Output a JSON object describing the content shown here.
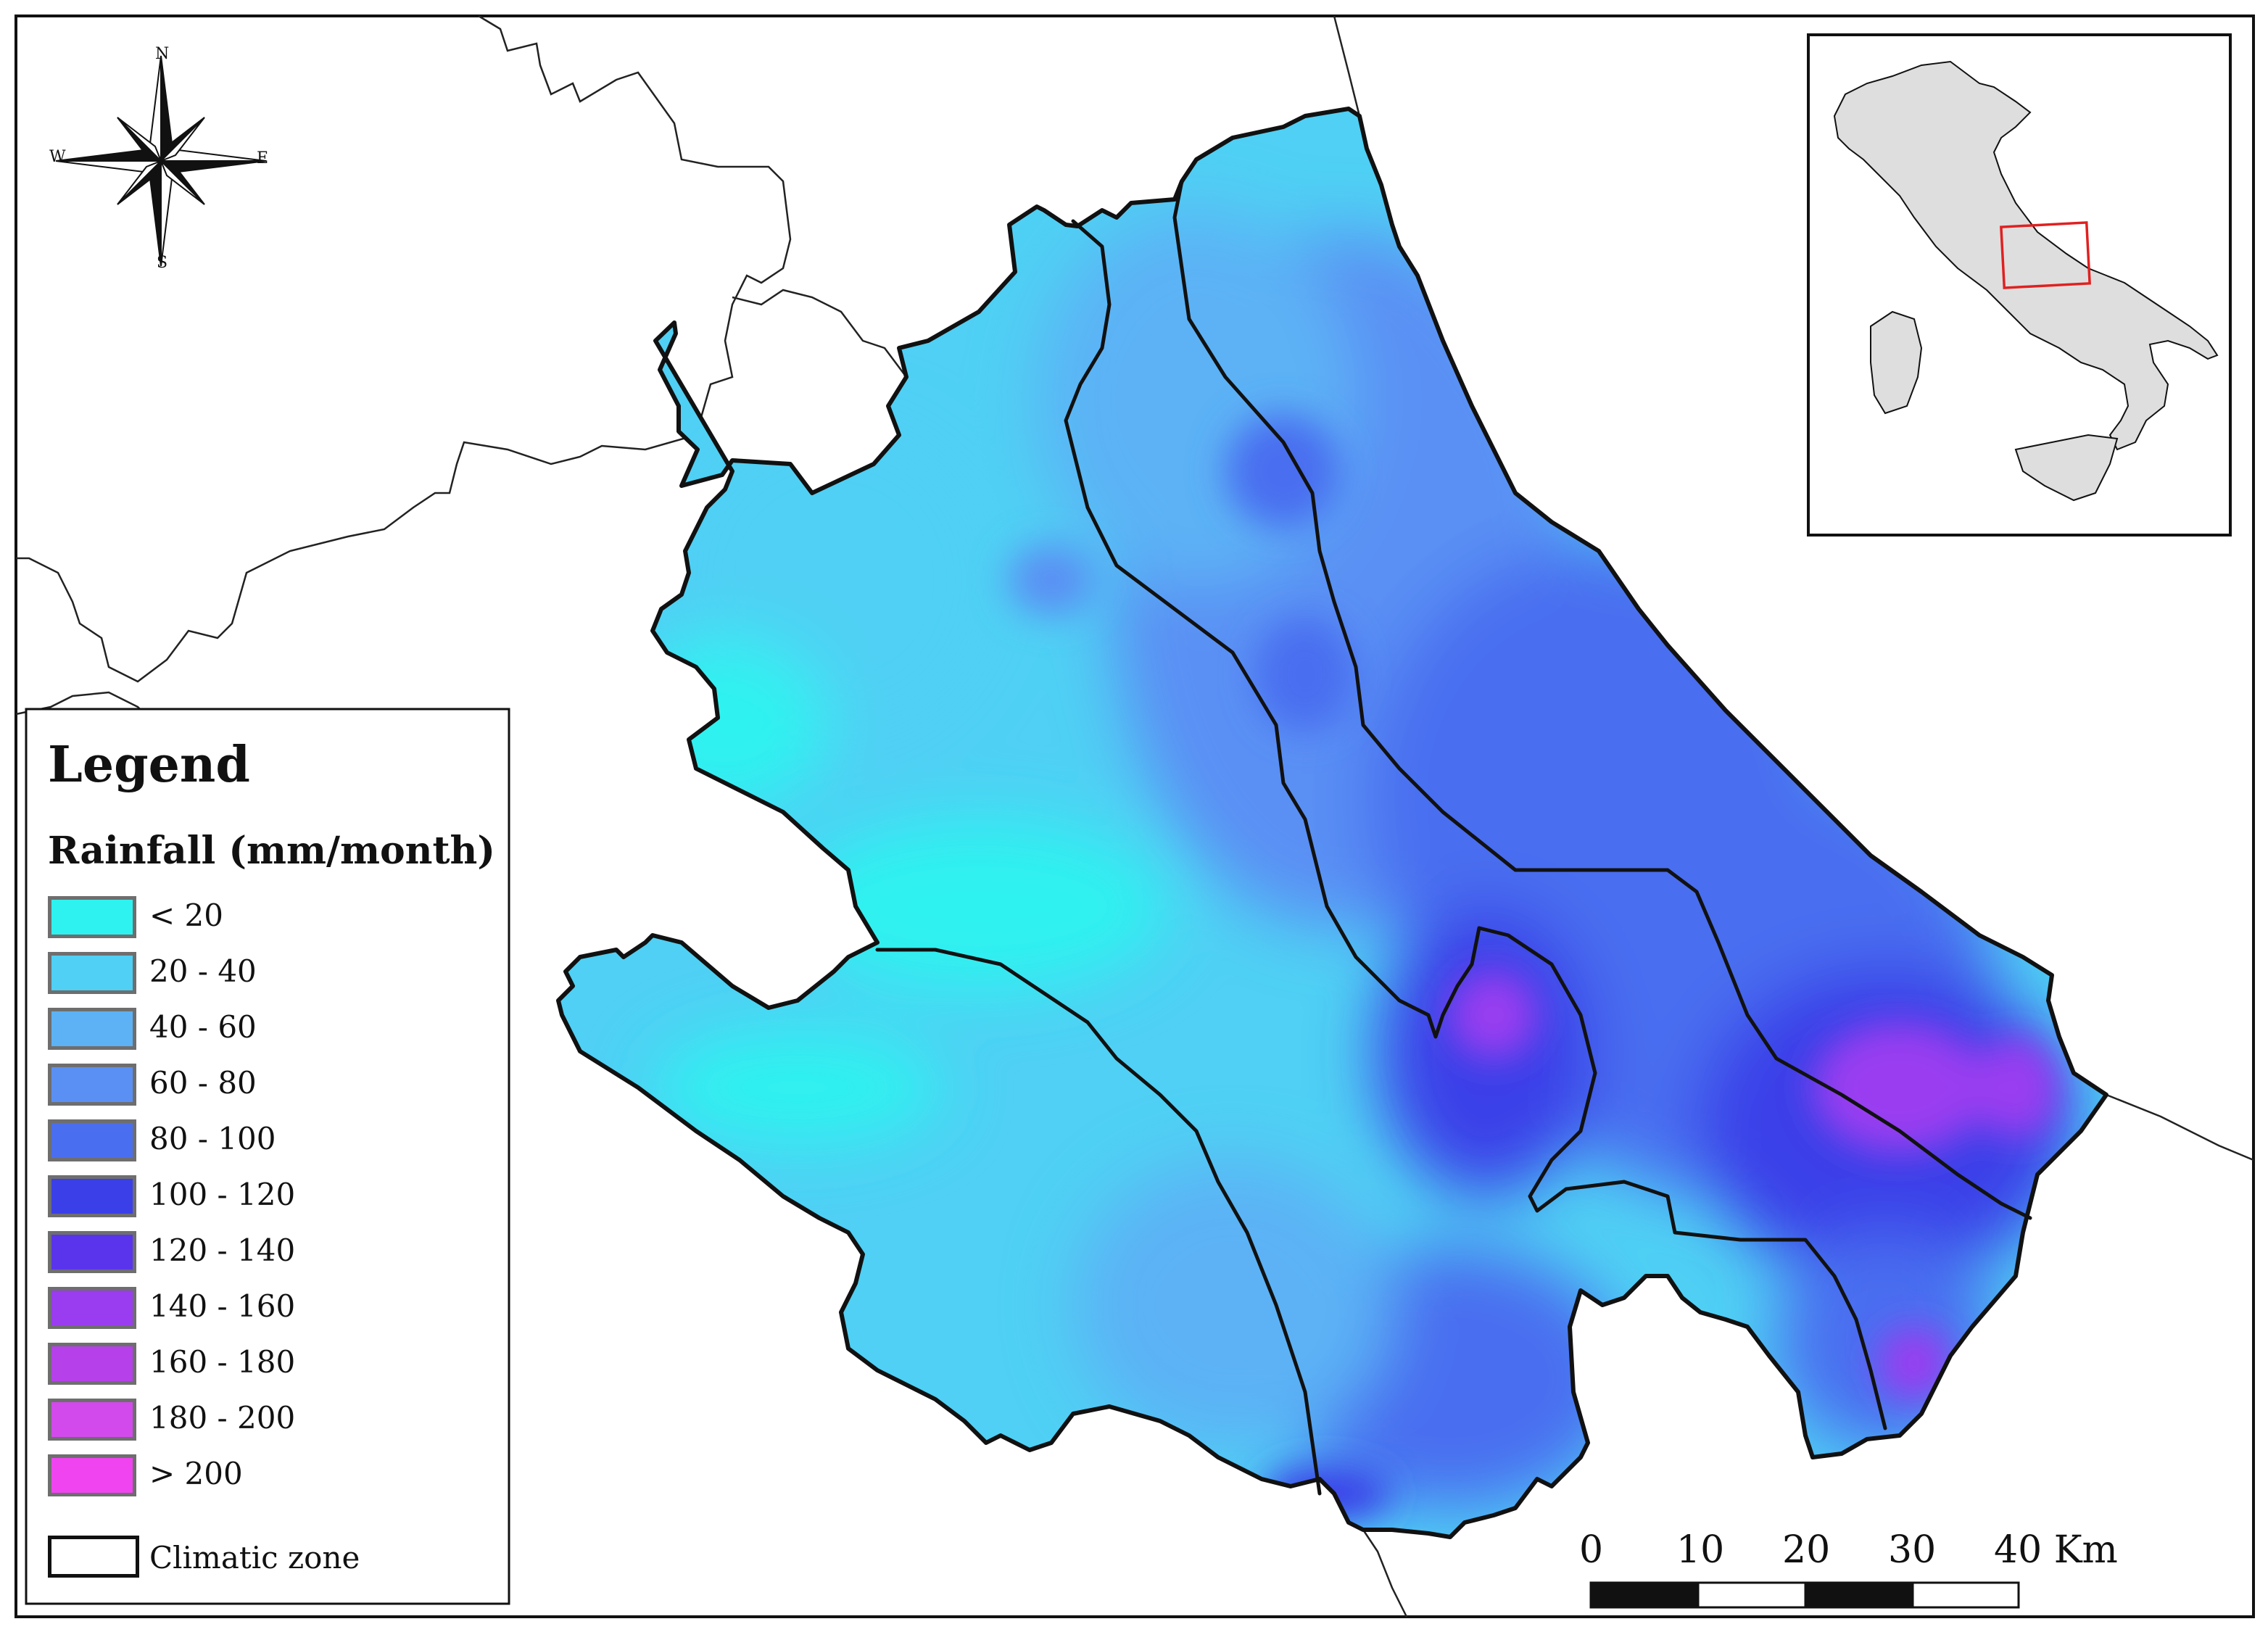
{
  "legend": {
    "title": "Legend",
    "subtitle": "Rainfall (mm/month)",
    "classes": [
      {
        "label": "< 20",
        "color": "#2ef2f0"
      },
      {
        "label": "20 - 40",
        "color": "#4fd0f4"
      },
      {
        "label": "40 - 60",
        "color": "#5cb2f5"
      },
      {
        "label": "60 - 80",
        "color": "#5a90f4"
      },
      {
        "label": "80 - 100",
        "color": "#4a6ef0"
      },
      {
        "label": "100 - 120",
        "color": "#3b3fe8"
      },
      {
        "label": "120 - 140",
        "color": "#5a34ec"
      },
      {
        "label": "140 - 160",
        "color": "#9a3cf0"
      },
      {
        "label": "160 - 180",
        "color": "#b640ea"
      },
      {
        "label": "180 - 200",
        "color": "#d24aec"
      },
      {
        "label": "> 200",
        "color": "#f044f0"
      }
    ],
    "zone_label": "Climatic zone"
  },
  "compass": {
    "north": "N",
    "south": "S",
    "east": "E",
    "west": "W"
  },
  "scale_bar": {
    "ticks": [
      "0",
      "10",
      "20",
      "30",
      "40 Km"
    ]
  },
  "inset": {
    "highlight_color": "#e02020",
    "land_color": "#dedede"
  }
}
